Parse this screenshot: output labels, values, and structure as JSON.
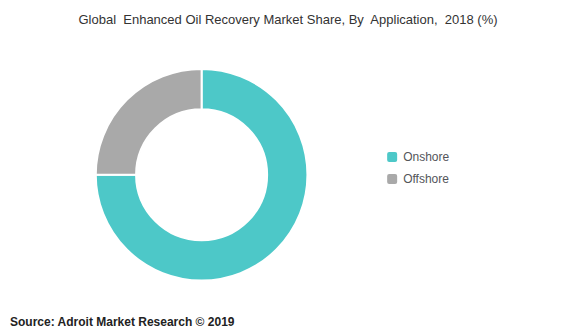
{
  "chart_data": {
    "type": "donut",
    "title": "Global  Enhanced Oil Recovery Market Share, By  Application,  2018 (%)",
    "categories": [
      "Onshore",
      "Offshore"
    ],
    "values": [
      75,
      25
    ],
    "colors": [
      "#4DC8C8",
      "#A9A9A9"
    ],
    "legend": "right",
    "annotations": [
      "Source: Adroit Market Research © 2019"
    ]
  }
}
